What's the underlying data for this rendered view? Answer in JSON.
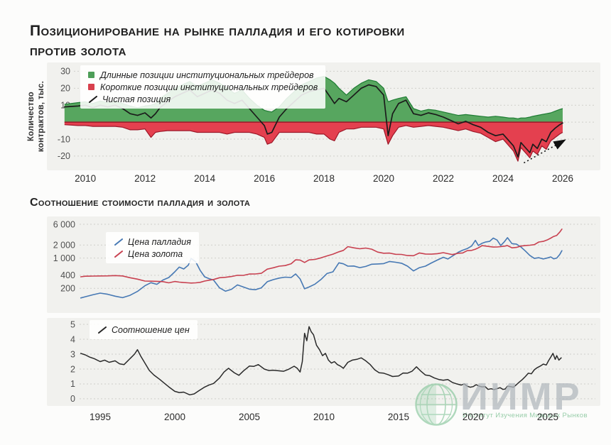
{
  "page": {
    "title": {
      "line1": "Позиционирование на рынке палладия и его котировки",
      "line2": "против золота"
    }
  },
  "style": {
    "page_bg": "#fcfcfb",
    "panel_bg": "#f1f1ee",
    "grid_color": "#cfcfca",
    "tick_color": "#4f4f4f",
    "xtick_color": "#2b2b2b",
    "accent_green": "#4d9e58",
    "accent_red": "#d8404d",
    "accent_blue": "#4779b4"
  },
  "watermark": {
    "wordmark": "ИИМР",
    "tagline": "Институт Изучения Мировых Рынков",
    "wordmark_color": "#c7cbce",
    "accent_color": "#7cc193"
  },
  "chart_data": [
    {
      "id": "positions",
      "type": "area",
      "ylabel": "Количество контрактов, тыс.",
      "legend": [
        {
          "kind": "area",
          "color": "#4d9e58",
          "label": "Длинные позиции институциональных трейдеров"
        },
        {
          "kind": "area",
          "color": "#d8404d",
          "label": "Короткие позиции институциональных трейдеров"
        },
        {
          "kind": "line",
          "color": "#1b1b1b",
          "label": "Чистая позиция"
        }
      ],
      "x_range": [
        2009.21,
        2026.12
      ],
      "y_range": [
        -28.4,
        35.2
      ],
      "x_ticks": [
        2010,
        2012,
        2014,
        2016,
        2018,
        2020,
        2022,
        2024,
        2026
      ],
      "y_ticks": [
        30,
        20,
        10,
        0,
        -10,
        -20
      ],
      "zero_line_color": "#9c1728",
      "t": [
        2009.3,
        2009.75,
        2010,
        2010.25,
        2010.5,
        2010.75,
        2011,
        2011.25,
        2011.5,
        2011.75,
        2012,
        2012.2,
        2012.35,
        2012.5,
        2012.75,
        2013,
        2013.25,
        2013.5,
        2013.75,
        2014,
        2014.25,
        2014.5,
        2014.75,
        2015,
        2015.25,
        2015.5,
        2015.75,
        2016,
        2016.1,
        2016.25,
        2016.5,
        2016.75,
        2017,
        2017.25,
        2017.5,
        2017.75,
        2018,
        2018.2,
        2018.35,
        2018.5,
        2018.75,
        2019,
        2019.25,
        2019.5,
        2019.75,
        2020,
        2020.15,
        2020.3,
        2020.5,
        2020.75,
        2021,
        2021.25,
        2021.5,
        2021.75,
        2022,
        2022.25,
        2022.5,
        2022.75,
        2023,
        2023.25,
        2023.5,
        2023.75,
        2024,
        2024.2,
        2024.35,
        2024.5,
        2024.6,
        2024.75,
        2024.9,
        2025,
        2025.15,
        2025.3,
        2025.45,
        2025.6,
        2025.75,
        2025.9,
        2026
      ],
      "series": [
        {
          "name": "long",
          "kind": "area",
          "fill": "#57a65f",
          "edge": "#1e7c33",
          "values": [
            10.5,
            11.5,
            12,
            11,
            12.5,
            11.5,
            12.5,
            11,
            9.5,
            8.5,
            9.5,
            10,
            11,
            14,
            17,
            20,
            22,
            24,
            21,
            23,
            25,
            23,
            20,
            17,
            19,
            14,
            10,
            7,
            6.5,
            6,
            9,
            14,
            18,
            22,
            24,
            26,
            27,
            25,
            23,
            20,
            16,
            20,
            23,
            25,
            24,
            20,
            12,
            13,
            14,
            15,
            8,
            6.5,
            7.5,
            7,
            6,
            5,
            4,
            4.5,
            4,
            3.5,
            3,
            3.5,
            3,
            2.5,
            2.5,
            2,
            2.5,
            2.5,
            3,
            3.5,
            4,
            4.5,
            5,
            5.5,
            6.5,
            7.5,
            8
          ]
        },
        {
          "name": "short",
          "kind": "area",
          "fill": "#e4404f",
          "edge": "#9c1728",
          "values": [
            -1.5,
            -2,
            -2,
            -2.5,
            -2.5,
            -2.5,
            -2.5,
            -3,
            -4.5,
            -4.5,
            -4,
            -9,
            -6,
            -5.5,
            -5,
            -5,
            -5,
            -5,
            -6,
            -6,
            -6,
            -6,
            -7,
            -6,
            -6,
            -6,
            -7,
            -9,
            -13,
            -12,
            -6,
            -6,
            -6,
            -6,
            -6,
            -7,
            -7,
            -10,
            -11,
            -6,
            -4,
            -4,
            -3,
            -3,
            -3,
            -4,
            -13,
            -8,
            -3,
            -2,
            -3,
            -2.5,
            -2,
            -2.5,
            -3,
            -4,
            -5,
            -4,
            -5.5,
            -6.5,
            -9,
            -11.5,
            -10,
            -14,
            -17,
            -23,
            -15,
            -18,
            -21,
            -17,
            -19,
            -14,
            -16,
            -11,
            -9,
            -7,
            -6
          ]
        },
        {
          "name": "net",
          "kind": "line",
          "color": "#1b1b1b",
          "width": 1.7,
          "values": [
            9,
            9.5,
            10,
            8.5,
            10,
            9,
            10,
            8,
            5,
            4,
            5.5,
            2.5,
            5,
            8.5,
            12,
            15,
            17,
            19,
            15,
            17,
            19,
            17,
            13,
            11,
            13,
            8,
            3,
            -2,
            -7,
            -6,
            3,
            8,
            12,
            16,
            18,
            19,
            20,
            15,
            11,
            14,
            12,
            16,
            20,
            22,
            21,
            16,
            -8,
            5,
            11,
            13,
            5,
            4,
            5.5,
            4.5,
            3,
            1,
            -1,
            0.5,
            -1.5,
            -3,
            -6,
            -8,
            -7,
            -11,
            -14,
            -20.5,
            -12,
            -15,
            -18,
            -13,
            -15.5,
            -10,
            -11.5,
            -6,
            -3.5,
            -1.5,
            -0.5
          ]
        }
      ],
      "arrow": {
        "from": [
          2024.7,
          -24
        ],
        "to": [
          2026.05,
          -10.8
        ]
      }
    },
    {
      "id": "prices",
      "type": "line",
      "title": "Соотношение стоимости палладия и золота",
      "y_scale": "log",
      "legend": [
        {
          "kind": "line",
          "color": "#4779b4",
          "label": "Цена палладия"
        },
        {
          "kind": "line",
          "color": "#c84150",
          "label": "Цена золота"
        }
      ],
      "x_range": [
        1993.62,
        2026.24
      ],
      "y_range": [
        54,
        9100
      ],
      "y_ticks": [
        6000,
        2000,
        1000,
        400,
        200
      ],
      "y_tick_labels": [
        "6 000",
        "2 000",
        "1 000",
        "400",
        "200"
      ],
      "t": [
        1993.7,
        1994,
        1994.5,
        1995,
        1995.5,
        1996,
        1996.5,
        1997,
        1997.5,
        1998,
        1998.4,
        1998.8,
        1999.2,
        1999.6,
        2000,
        2000.3,
        2000.6,
        2000.9,
        2001.1,
        2001.4,
        2001.7,
        2002,
        2002.3,
        2002.6,
        2003,
        2003.4,
        2003.8,
        2004.2,
        2004.6,
        2005,
        2005.4,
        2005.8,
        2006.2,
        2006.6,
        2007,
        2007.4,
        2007.8,
        2008.1,
        2008.4,
        2008.7,
        2009,
        2009.4,
        2009.8,
        2010.2,
        2010.6,
        2011,
        2011.3,
        2011.6,
        2012,
        2012.4,
        2012.8,
        2013.2,
        2013.6,
        2014,
        2014.4,
        2014.8,
        2015.2,
        2015.6,
        2016,
        2016.4,
        2016.8,
        2017.2,
        2017.6,
        2018,
        2018.3,
        2018.6,
        2019,
        2019.3,
        2019.6,
        2019.9,
        2020.15,
        2020.35,
        2020.6,
        2020.85,
        2021.1,
        2021.35,
        2021.6,
        2021.85,
        2022.1,
        2022.3,
        2022.6,
        2022.9,
        2023.2,
        2023.5,
        2023.8,
        2024.1,
        2024.4,
        2024.7,
        2025,
        2025.2,
        2025.4,
        2025.6,
        2025.8,
        2025.95
      ],
      "series": [
        {
          "name": "palladium",
          "kind": "line",
          "color": "#4779b4",
          "width": 1.6,
          "values": [
            120,
            128,
            142,
            155,
            146,
            132,
            122,
            138,
            170,
            230,
            270,
            248,
            310,
            355,
            480,
            620,
            560,
            680,
            980,
            820,
            520,
            370,
            335,
            310,
            205,
            172,
            190,
            240,
            215,
            192,
            186,
            205,
            285,
            318,
            345,
            362,
            355,
            430,
            330,
            195,
            215,
            250,
            320,
            440,
            480,
            775,
            735,
            650,
            655,
            600,
            640,
            720,
            730,
            745,
            835,
            800,
            760,
            650,
            505,
            600,
            650,
            770,
            900,
            1040,
            950,
            1100,
            1360,
            1520,
            1650,
            1900,
            2550,
            1950,
            2200,
            2350,
            2420,
            2880,
            2600,
            1950,
            2400,
            2950,
            2150,
            2100,
            1800,
            1450,
            1150,
            980,
            1020,
            950,
            1010,
            1060,
            960,
            1000,
            1200,
            1480
          ]
        },
        {
          "name": "gold",
          "kind": "line",
          "color": "#c84150",
          "width": 1.6,
          "values": [
            370,
            380,
            384,
            386,
            388,
            394,
            386,
            352,
            326,
            295,
            292,
            290,
            286,
            268,
            288,
            278,
            272,
            268,
            265,
            268,
            275,
            295,
            308,
            320,
            352,
            360,
            375,
            400,
            398,
            428,
            430,
            445,
            555,
            595,
            650,
            670,
            740,
            910,
            900,
            790,
            905,
            930,
            1010,
            1120,
            1230,
            1390,
            1500,
            1830,
            1720,
            1640,
            1700,
            1600,
            1370,
            1290,
            1300,
            1220,
            1210,
            1140,
            1130,
            1310,
            1240,
            1230,
            1260,
            1330,
            1260,
            1200,
            1290,
            1310,
            1480,
            1500,
            1600,
            1720,
            1930,
            1890,
            1840,
            1790,
            1800,
            1830,
            1880,
            1940,
            1720,
            1760,
            1890,
            1950,
            1980,
            2040,
            2340,
            2420,
            2650,
            2880,
            3150,
            3320,
            3950,
            4650
          ]
        }
      ]
    },
    {
      "id": "ratio",
      "type": "line",
      "legend": [
        {
          "kind": "line",
          "color": "#262626",
          "label": "Соотношение цен"
        }
      ],
      "x_range": [
        1993.62,
        2026.24
      ],
      "y_range": [
        -0.48,
        5.43
      ],
      "x_ticks": [
        1995,
        2000,
        2005,
        2010,
        2015,
        2020,
        2025
      ],
      "y_ticks": [
        5,
        4,
        3,
        2,
        1,
        0
      ],
      "t": [
        1993.7,
        1994,
        1994.3,
        1994.6,
        1995,
        1995.3,
        1995.6,
        1996,
        1996.3,
        1996.6,
        1996.9,
        1997.1,
        1997.3,
        1997.5,
        1997.7,
        1998,
        1998.3,
        1998.6,
        1999,
        1999.3,
        1999.6,
        2000,
        2000.3,
        2000.6,
        2001,
        2001.3,
        2001.6,
        2002,
        2002.3,
        2002.6,
        2003,
        2003.3,
        2003.6,
        2004,
        2004.3,
        2004.6,
        2005,
        2005.3,
        2005.6,
        2006,
        2006.3,
        2006.6,
        2007,
        2007.3,
        2007.6,
        2008,
        2008.2,
        2008.4,
        2008.55,
        2008.7,
        2008.85,
        2009,
        2009.15,
        2009.3,
        2009.5,
        2009.7,
        2009.9,
        2010.1,
        2010.3,
        2010.5,
        2010.7,
        2010.9,
        2011.1,
        2011.3,
        2011.6,
        2011.9,
        2012.2,
        2012.5,
        2012.8,
        2013.1,
        2013.4,
        2013.7,
        2014,
        2014.3,
        2014.6,
        2015,
        2015.3,
        2015.6,
        2015.9,
        2016.2,
        2016.5,
        2016.8,
        2017.1,
        2017.4,
        2017.7,
        2018,
        2018.3,
        2018.6,
        2018.9,
        2019.2,
        2019.4,
        2019.6,
        2019.8,
        2020,
        2020.2,
        2020.4,
        2020.6,
        2020.8,
        2021,
        2021.2,
        2021.4,
        2021.6,
        2021.8,
        2022,
        2022.15,
        2022.3,
        2022.5,
        2022.7,
        2022.9,
        2023.1,
        2023.3,
        2023.5,
        2023.7,
        2023.9,
        2024.1,
        2024.3,
        2024.5,
        2024.7,
        2024.9,
        2025.05,
        2025.2,
        2025.35,
        2025.5,
        2025.6,
        2025.75,
        2025.9
      ],
      "series": [
        {
          "name": "gold_palladium_ratio",
          "kind": "line",
          "color": "#2a2a2a",
          "width": 1.5,
          "values": [
            3.05,
            2.95,
            2.8,
            2.7,
            2.5,
            2.6,
            2.45,
            2.55,
            2.35,
            2.3,
            2.6,
            2.8,
            3.0,
            3.3,
            2.9,
            2.4,
            1.9,
            1.6,
            1.3,
            1.05,
            0.8,
            0.5,
            0.42,
            0.45,
            0.27,
            0.33,
            0.53,
            0.79,
            0.93,
            1.03,
            1.4,
            1.8,
            2.05,
            1.74,
            1.58,
            1.87,
            2.2,
            2.18,
            2.3,
            2.0,
            1.9,
            1.92,
            1.88,
            1.85,
            1.97,
            2.19,
            2.06,
            1.8,
            2.5,
            4.4,
            3.9,
            4.85,
            4.5,
            4.3,
            3.6,
            3.3,
            2.9,
            3.05,
            2.6,
            2.4,
            2.5,
            2.3,
            2.2,
            2.05,
            2.45,
            2.6,
            2.65,
            2.75,
            2.55,
            2.3,
            1.95,
            1.75,
            1.72,
            1.62,
            1.5,
            1.53,
            1.73,
            1.72,
            1.85,
            2.15,
            1.85,
            1.6,
            1.55,
            1.4,
            1.3,
            1.25,
            1.3,
            1.1,
            1.0,
            0.92,
            1.0,
            0.85,
            0.78,
            0.82,
            0.95,
            0.85,
            0.8,
            0.82,
            0.63,
            0.68,
            0.62,
            0.68,
            0.75,
            0.63,
            0.66,
            0.85,
            0.82,
            0.78,
            0.95,
            1.13,
            1.3,
            1.5,
            1.72,
            1.68,
            1.95,
            2.1,
            2.2,
            2.33,
            2.27,
            2.55,
            2.8,
            3.05,
            2.65,
            2.9,
            2.6,
            2.75
          ]
        }
      ]
    }
  ]
}
